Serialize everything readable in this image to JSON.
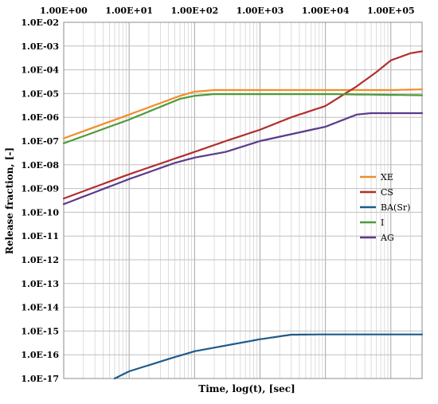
{
  "chart_data": {
    "type": "line",
    "title": "",
    "xlabel": "Time, log(t), [sec]",
    "ylabel": "Release fraction, [-]",
    "xscale": "log",
    "yscale": "log",
    "xlim": [
      1,
      300000
    ],
    "ylim": [
      1e-17,
      0.01
    ],
    "grid": true,
    "x_axis_position": "top",
    "legend_position": "right",
    "x_tick_values": [
      1,
      10,
      100,
      1000,
      10000,
      100000
    ],
    "x_tick_labels": [
      "1.00E+00",
      "1.00E+01",
      "1.00E+02",
      "1.00E+03",
      "1.00E+04",
      "1.00E+05"
    ],
    "y_tick_labels": [
      "1.0E-02",
      "1.0E-03",
      "1.0E-04",
      "1.0E-05",
      "1.0E-06",
      "1.0E-07",
      "1.0E-08",
      "1.0E-09",
      "1.0E-10",
      "1.0E-11",
      "1.0E-12",
      "1.0E-13",
      "1.0E-14",
      "1.0E-15",
      "1.0E-16",
      "1.0E-17"
    ],
    "series": [
      {
        "name": "XE",
        "color": "#F28C28",
        "points": [
          [
            1,
            1.3e-07
          ],
          [
            10,
            1.3e-06
          ],
          [
            60,
            8e-06
          ],
          [
            100,
            1.2e-05
          ],
          [
            200,
            1.4e-05
          ],
          [
            1000,
            1.4e-05
          ],
          [
            10000,
            1.4e-05
          ],
          [
            100000,
            1.4e-05
          ],
          [
            300000,
            1.5e-05
          ]
        ]
      },
      {
        "name": "CS",
        "color": "#B22E2E",
        "points": [
          [
            1,
            3.8e-10
          ],
          [
            10,
            4e-09
          ],
          [
            100,
            3.5e-08
          ],
          [
            300,
            1e-07
          ],
          [
            1000,
            3e-07
          ],
          [
            3000,
            1e-06
          ],
          [
            10000,
            3e-06
          ],
          [
            30000,
            2e-05
          ],
          [
            60000,
            8e-05
          ],
          [
            100000,
            0.00025
          ],
          [
            200000,
            0.0005
          ],
          [
            300000,
            0.0006
          ]
        ]
      },
      {
        "name": "BA(Sr)",
        "color": "#1F5A8A",
        "points": [
          [
            6,
            1e-17
          ],
          [
            10,
            2e-17
          ],
          [
            50,
            8e-17
          ],
          [
            100,
            1.4e-16
          ],
          [
            1000,
            4.5e-16
          ],
          [
            3000,
            7e-16
          ],
          [
            10000,
            7.2e-16
          ],
          [
            100000,
            7.2e-16
          ],
          [
            300000,
            7.2e-16
          ]
        ]
      },
      {
        "name": "I",
        "color": "#4E9A3A",
        "points": [
          [
            1,
            8e-08
          ],
          [
            10,
            8e-07
          ],
          [
            60,
            6e-06
          ],
          [
            100,
            8e-06
          ],
          [
            200,
            9.5e-06
          ],
          [
            1000,
            9.5e-06
          ],
          [
            10000,
            9.5e-06
          ],
          [
            100000,
            8.8e-06
          ],
          [
            300000,
            8.5e-06
          ]
        ]
      },
      {
        "name": "AG",
        "color": "#5B3A8C",
        "points": [
          [
            1,
            2.2e-10
          ],
          [
            10,
            2.5e-09
          ],
          [
            50,
            1.2e-08
          ],
          [
            100,
            2e-08
          ],
          [
            300,
            3.5e-08
          ],
          [
            1000,
            1e-07
          ],
          [
            10000,
            4e-07
          ],
          [
            30000,
            1.3e-06
          ],
          [
            50000,
            1.5e-06
          ],
          [
            100000,
            1.5e-06
          ],
          [
            300000,
            1.5e-06
          ]
        ]
      }
    ]
  }
}
